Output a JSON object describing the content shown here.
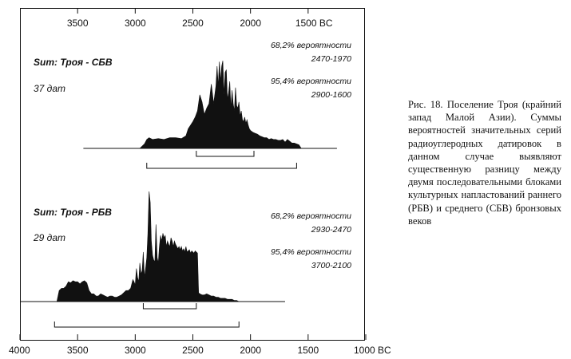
{
  "caption": "Рис. 18. Поселение Троя (крайний запад Малой Азии). Суммы вероятностей значительных серий радиоуглеродных датировок в данном случае выявляют существенную разницу между двумя последовательными блоками культурных напластований раннего (РБВ) и среднего (СБВ) бронзовых веков",
  "chart_data": {
    "type": "area",
    "x_unit": "BC",
    "top_axis": {
      "ticks": [
        3500,
        3000,
        2500,
        2000,
        1500
      ],
      "labels": [
        "3500",
        "3000",
        "2500",
        "2000",
        "1500 BC"
      ]
    },
    "bottom_axis": {
      "ticks": [
        4000,
        3500,
        3000,
        2500,
        2000,
        1500,
        1000
      ],
      "labels": [
        "4000",
        "3500",
        "3000",
        "2500",
        "2000",
        "1500",
        "1000 BC"
      ]
    },
    "xlim": [
      4000,
      1000
    ],
    "panels": [
      {
        "title": "Sum: Троя - СБВ",
        "count_label": "37 дат",
        "prob68_label": "68,2% вероятности",
        "range68_label": "2470-1970",
        "range68": [
          2470,
          1970
        ],
        "prob95_label": "95,4% вероятности",
        "range95_label": "2900-1600",
        "range95": [
          2900,
          1600
        ],
        "ymax": 1,
        "x": [
          2960,
          2920,
          2900,
          2880,
          2850,
          2800,
          2750,
          2700,
          2650,
          2600,
          2560,
          2540,
          2520,
          2500,
          2480,
          2460,
          2440,
          2420,
          2400,
          2380,
          2360,
          2340,
          2330,
          2320,
          2300,
          2290,
          2280,
          2270,
          2260,
          2250,
          2240,
          2230,
          2220,
          2210,
          2200,
          2190,
          2180,
          2170,
          2160,
          2150,
          2140,
          2130,
          2120,
          2110,
          2100,
          2090,
          2080,
          2070,
          2060,
          2050,
          2040,
          2030,
          2020,
          2010,
          2000,
          1980,
          1960,
          1940,
          1920,
          1900,
          1880,
          1860,
          1840,
          1820,
          1800,
          1780,
          1760,
          1740,
          1720,
          1700,
          1680,
          1660,
          1640,
          1620,
          1600,
          1580,
          1560
        ],
        "values": [
          0,
          0.05,
          0.1,
          0.12,
          0.1,
          0.11,
          0.1,
          0.12,
          0.12,
          0.11,
          0.14,
          0.22,
          0.26,
          0.3,
          0.35,
          0.42,
          0.6,
          0.52,
          0.38,
          0.45,
          0.5,
          0.72,
          0.62,
          0.5,
          0.7,
          0.92,
          0.7,
          0.97,
          0.75,
          0.92,
          0.98,
          0.6,
          0.85,
          0.88,
          0.55,
          0.62,
          0.75,
          0.45,
          0.65,
          0.5,
          0.42,
          0.68,
          0.48,
          0.45,
          0.52,
          0.36,
          0.42,
          0.32,
          0.3,
          0.35,
          0.28,
          0.32,
          0.26,
          0.22,
          0.2,
          0.18,
          0.17,
          0.16,
          0.14,
          0.13,
          0.12,
          0.12,
          0.1,
          0.11,
          0.1,
          0.1,
          0.09,
          0.09,
          0.1,
          0.07,
          0.1,
          0.08,
          0.06,
          0.06,
          0.05,
          0.04,
          0
        ]
      },
      {
        "title": "Sum: Троя - РБВ",
        "count_label": "29 дат",
        "prob68_label": "68,2% вероятности",
        "range68_label": "2930-2470",
        "range68": [
          2930,
          2470
        ],
        "prob95_label": "95,4% вероятности",
        "range95_label": "3700-2100",
        "range95": [
          3700,
          2100
        ],
        "ymax": 1,
        "x": [
          3680,
          3660,
          3640,
          3620,
          3600,
          3580,
          3560,
          3540,
          3520,
          3500,
          3480,
          3460,
          3440,
          3420,
          3400,
          3380,
          3360,
          3340,
          3320,
          3300,
          3280,
          3260,
          3240,
          3220,
          3200,
          3180,
          3160,
          3140,
          3120,
          3100,
          3080,
          3060,
          3040,
          3020,
          3010,
          3000,
          2990,
          2980,
          2970,
          2960,
          2950,
          2940,
          2930,
          2920,
          2910,
          2900,
          2890,
          2880,
          2870,
          2860,
          2850,
          2840,
          2830,
          2820,
          2810,
          2800,
          2790,
          2780,
          2770,
          2760,
          2750,
          2740,
          2730,
          2720,
          2710,
          2700,
          2690,
          2680,
          2670,
          2660,
          2650,
          2640,
          2630,
          2620,
          2610,
          2600,
          2590,
          2580,
          2570,
          2560,
          2550,
          2540,
          2530,
          2520,
          2510,
          2500,
          2490,
          2480,
          2470,
          2460,
          2450,
          2440,
          2420,
          2400,
          2380,
          2360,
          2340,
          2320,
          2300,
          2280,
          2260,
          2240,
          2220,
          2200,
          2180,
          2160,
          2140,
          2120,
          2100
        ],
        "values": [
          0,
          0.1,
          0.12,
          0.12,
          0.14,
          0.18,
          0.17,
          0.19,
          0.18,
          0.18,
          0.16,
          0.18,
          0.19,
          0.17,
          0.1,
          0.07,
          0.07,
          0.05,
          0.05,
          0.07,
          0.06,
          0.05,
          0.04,
          0.05,
          0.05,
          0.04,
          0.04,
          0.05,
          0.06,
          0.08,
          0.1,
          0.1,
          0.12,
          0.2,
          0.18,
          0.15,
          0.3,
          0.22,
          0.18,
          0.35,
          0.25,
          0.28,
          0.45,
          0.22,
          0.3,
          0.4,
          0.62,
          1.0,
          0.9,
          0.55,
          0.42,
          0.38,
          0.36,
          0.7,
          0.4,
          0.35,
          0.5,
          0.6,
          0.55,
          0.62,
          0.58,
          0.6,
          0.5,
          0.55,
          0.52,
          0.5,
          0.58,
          0.55,
          0.5,
          0.55,
          0.52,
          0.5,
          0.48,
          0.5,
          0.47,
          0.5,
          0.46,
          0.48,
          0.45,
          0.5,
          0.45,
          0.46,
          0.47,
          0.44,
          0.46,
          0.45,
          0.44,
          0.46,
          0.45,
          0.44,
          0.08,
          0.07,
          0.06,
          0.06,
          0.07,
          0.06,
          0.05,
          0.05,
          0.04,
          0.04,
          0.03,
          0.03,
          0.03,
          0.02,
          0.02,
          0.02,
          0.01,
          0.01,
          0
        ]
      }
    ]
  }
}
